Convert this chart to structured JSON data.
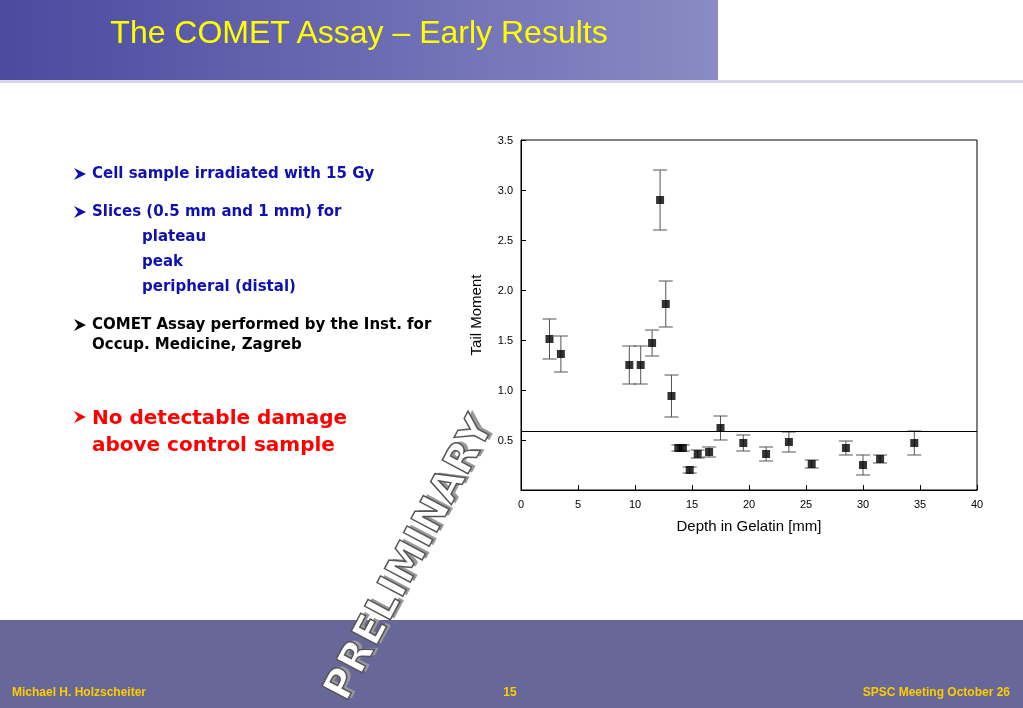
{
  "chart_data": {
    "type": "scatter",
    "title": "The COMET Assay – Early Results",
    "xlabel": "Depth in Gelatin [mm]",
    "ylabel": "Tail Moment",
    "x": [
      2.5,
      3.5,
      9.5,
      10.5,
      11.5,
      12.2,
      12.7,
      13.2,
      13.8,
      14.2,
      14.8,
      15.5,
      16.5,
      17.5,
      19.5,
      21.5,
      23.5,
      25.5,
      28.5,
      30,
      31.5,
      34.5
    ],
    "values": [
      1.51,
      1.36,
      1.25,
      1.25,
      1.47,
      2.9,
      1.86,
      0.94,
      0.42,
      0.42,
      0.2,
      0.36,
      0.38,
      0.62,
      0.47,
      0.36,
      0.48,
      0.26,
      0.42,
      0.25,
      0.31,
      0.47
    ],
    "errors": [
      0.2,
      0.18,
      0.19,
      0.19,
      0.13,
      0.3,
      0.23,
      0.21,
      0.03,
      0.03,
      0.03,
      0.04,
      0.05,
      0.12,
      0.08,
      0.07,
      0.1,
      0.04,
      0.07,
      0.1,
      0.04,
      0.12
    ],
    "color": "#000000",
    "marker": "square",
    "grid": false,
    "xlim": [
      0,
      40
    ],
    "xticks": [
      0,
      5,
      10,
      15,
      20,
      25,
      30,
      35,
      40
    ],
    "ylim": [
      0,
      3.5
    ],
    "yticks": [
      {
        "value": 0,
        "label": null
      },
      {
        "value": 0.5,
        "label": "0.5"
      },
      {
        "value": 1,
        "label": "1.0"
      },
      {
        "value": 1.5,
        "label": "1.5"
      },
      {
        "value": 2,
        "label": "2.0"
      },
      {
        "value": 2.5,
        "label": "2.5"
      },
      {
        "value": 3,
        "label": "3.0"
      },
      {
        "value": 3.5,
        "label": "3.5"
      }
    ],
    "ref_lines": [
      {
        "axis": "y",
        "value": 0.59,
        "label": null
      }
    ],
    "annotations": [
      "Cell sample irradiated with 15 Gy",
      "Slices (0.5 mm and 1 mm) for",
      "plateau",
      "peak",
      "peripheral (distal)",
      "COMET Assay performed by the Inst. for Occup. Medicine, Zagreb",
      "No detectable damage above control sample",
      "PRELIMINARY",
      "Michael H. Holzscheiter",
      "15",
      "SPSC Meeting October 26"
    ]
  }
}
